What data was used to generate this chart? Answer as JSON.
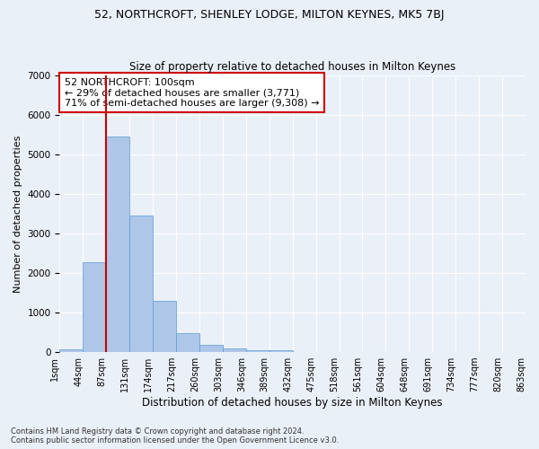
{
  "title": "52, NORTHCROFT, SHENLEY LODGE, MILTON KEYNES, MK5 7BJ",
  "subtitle": "Size of property relative to detached houses in Milton Keynes",
  "xlabel": "Distribution of detached houses by size in Milton Keynes",
  "ylabel": "Number of detached properties",
  "bar_values": [
    70,
    2280,
    5450,
    3440,
    1300,
    480,
    185,
    90,
    55,
    40,
    0,
    0,
    0,
    0,
    0,
    0,
    0,
    0,
    0,
    0
  ],
  "bar_labels": [
    "1sqm",
    "44sqm",
    "87sqm",
    "131sqm",
    "174sqm",
    "217sqm",
    "260sqm",
    "303sqm",
    "346sqm",
    "389sqm",
    "432sqm",
    "475sqm",
    "518sqm",
    "561sqm",
    "604sqm",
    "648sqm",
    "691sqm",
    "734sqm",
    "777sqm",
    "820sqm",
    "863sqm"
  ],
  "bar_color": "#aec6e8",
  "bar_edge_color": "#5b9bd5",
  "vline_color": "#cc0000",
  "annotation_text": "52 NORTHCROFT: 100sqm\n← 29% of detached houses are smaller (3,771)\n71% of semi-detached houses are larger (9,308) →",
  "annotation_box_color": "white",
  "annotation_box_edge": "#cc0000",
  "ylim": [
    0,
    7000
  ],
  "yticks": [
    0,
    1000,
    2000,
    3000,
    4000,
    5000,
    6000,
    7000
  ],
  "background_color": "#eaf0f8",
  "axes_bg_color": "#eaf0f8",
  "grid_color": "white",
  "footer_text": "Contains HM Land Registry data © Crown copyright and database right 2024.\nContains public sector information licensed under the Open Government Licence v3.0.",
  "title_fontsize": 9,
  "subtitle_fontsize": 8.5,
  "xlabel_fontsize": 8.5,
  "ylabel_fontsize": 8,
  "tick_fontsize": 7,
  "annotation_fontsize": 8,
  "footer_fontsize": 6
}
